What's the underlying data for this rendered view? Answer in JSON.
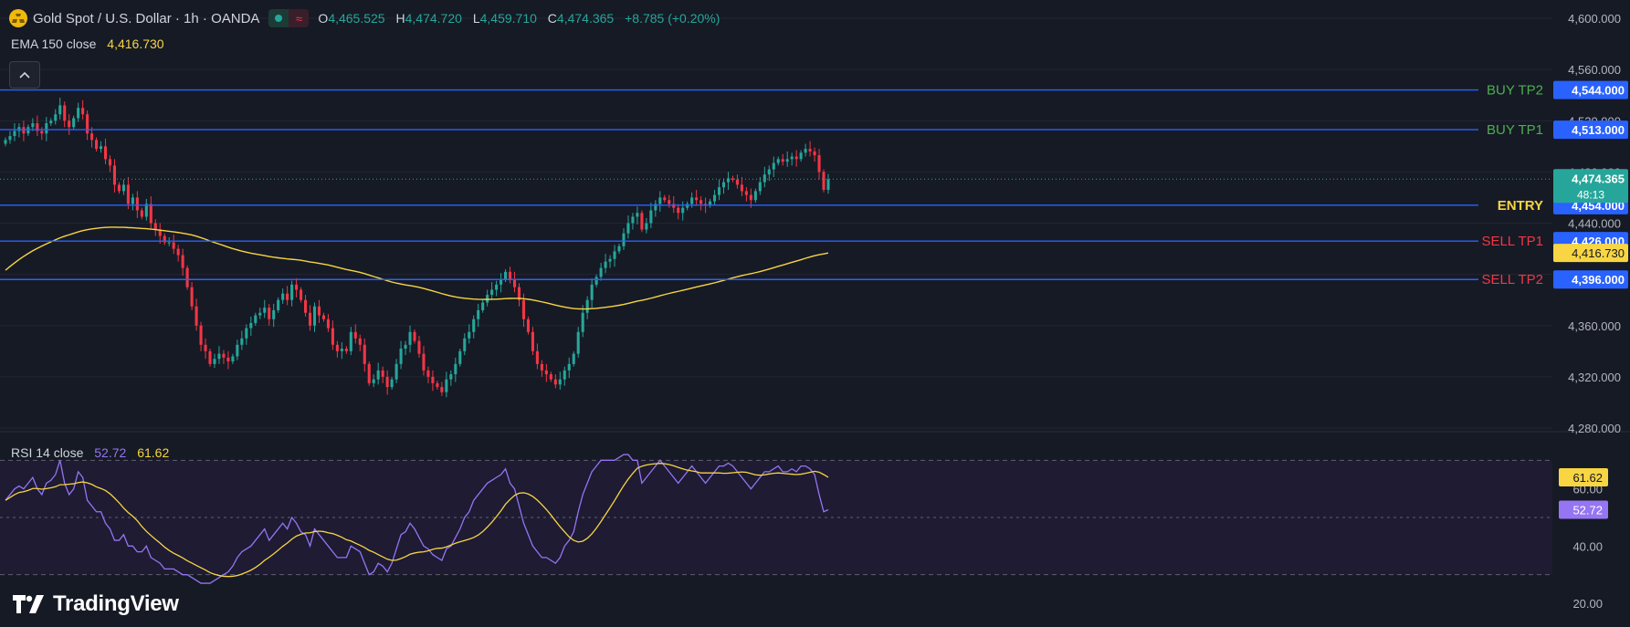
{
  "header": {
    "title": "Gold Spot / U.S. Dollar · 1h · OANDA",
    "ohlc": [
      {
        "key": "O",
        "value": "4,465.525"
      },
      {
        "key": "H",
        "value": "4,474.720"
      },
      {
        "key": "L",
        "value": "4,459.710"
      },
      {
        "key": "C",
        "value": "4,474.365"
      }
    ],
    "change": "+8.785 (+0.20%)"
  },
  "ema": {
    "label": "EMA 150 close",
    "value": "4,416.730"
  },
  "rsi": {
    "label": "RSI 14 close",
    "value": "52.72",
    "ma_value": "61.62"
  },
  "brand": {
    "name": "TradingView"
  },
  "colors": {
    "background": "#161a25",
    "up": "#26a69a",
    "down": "#f23645",
    "level_line": "#2962ff",
    "ema": "#f7d543",
    "rsi": "#9575f2",
    "rsi_ma": "#f7d543",
    "buy_label": "#4caf50",
    "sell_label": "#f23645",
    "entry_label": "#f7d543"
  },
  "chart_data": [
    {
      "type": "candlestick",
      "title": "Gold Spot / U.S. Dollar · 1h · OANDA",
      "ylim": [
        4280,
        4600
      ],
      "y_ticks": [
        "4,600.000",
        "4,560.000",
        "4,520.000",
        "4,480.000",
        "4,440.000",
        "4,400.000",
        "4,360.000",
        "4,320.000",
        "4,280.000"
      ],
      "grid": true,
      "levels": [
        {
          "label": "BUY TP2",
          "value": 4544,
          "price_label": "4,544.000",
          "color": "#4caf50"
        },
        {
          "label": "BUY TP1",
          "value": 4513,
          "price_label": "4,513.000",
          "color": "#4caf50"
        },
        {
          "label": "ENTRY",
          "value": 4454,
          "price_label": "4,454.000",
          "color": "#f7d543"
        },
        {
          "label": "SELL TP1",
          "value": 4426,
          "price_label": "4,426.000",
          "color": "#f23645"
        },
        {
          "label": "SELL TP2",
          "value": 4396,
          "price_label": "4,396.000",
          "color": "#f23645"
        }
      ],
      "last_price": {
        "value": 4474.365,
        "label": "4,474.365",
        "countdown": "48:13"
      },
      "ema_last": {
        "value": 4416.73,
        "label": "4,416.730"
      },
      "close": [
        4505,
        4508,
        4512,
        4515,
        4510,
        4515,
        4518,
        4512,
        4510,
        4518,
        4520,
        4525,
        4532,
        4520,
        4515,
        4522,
        4530,
        4525,
        4510,
        4505,
        4498,
        4500,
        4490,
        4485,
        4470,
        4465,
        4470,
        4455,
        4460,
        4450,
        4445,
        4455,
        4440,
        4435,
        4430,
        4425,
        4425,
        4420,
        4415,
        4405,
        4390,
        4375,
        4360,
        4345,
        4340,
        4330,
        4334,
        4338,
        4335,
        4332,
        4336,
        4345,
        4350,
        4358,
        4362,
        4368,
        4370,
        4374,
        4365,
        4372,
        4380,
        4385,
        4380,
        4392,
        4388,
        4380,
        4370,
        4360,
        4375,
        4368,
        4365,
        4358,
        4345,
        4340,
        4342,
        4340,
        4355,
        4350,
        4345,
        4330,
        4315,
        4318,
        4325,
        4320,
        4312,
        4318,
        4330,
        4342,
        4345,
        4355,
        4348,
        4338,
        4325,
        4320,
        4315,
        4312,
        4308,
        4318,
        4322,
        4330,
        4340,
        4350,
        4355,
        4365,
        4372,
        4378,
        4384,
        4388,
        4392,
        4396,
        4402,
        4396,
        4390,
        4380,
        4365,
        4355,
        4340,
        4330,
        4325,
        4322,
        4318,
        4314,
        4318,
        4325,
        4330,
        4338,
        4355,
        4370,
        4380,
        4392,
        4398,
        4405,
        4410,
        4412,
        4418,
        4422,
        4432,
        4440,
        4445,
        4448,
        4435,
        4440,
        4450,
        4455,
        4460,
        4458,
        4455,
        4452,
        4448,
        4452,
        4455,
        4460,
        4458,
        4455,
        4454,
        4457,
        4462,
        4468,
        4472,
        4475,
        4474,
        4470,
        4465,
        4462,
        4458,
        4465,
        4472,
        4478,
        4482,
        4487,
        4490,
        4488,
        4490,
        4492,
        4490,
        4495,
        4498,
        4496,
        4493,
        4480,
        4466,
        4474.365
      ],
      "ema_start": 4400
    },
    {
      "type": "line",
      "title": "RSI 14 close",
      "ylim": [
        20,
        80
      ],
      "y_ticks": [
        "60.00",
        "40.00",
        "20.00"
      ],
      "bands": [
        70,
        30
      ],
      "mid_line": 50,
      "series": [
        {
          "name": "RSI 14 close",
          "last_label": "52.72",
          "values": [
            56,
            58,
            60,
            61,
            60,
            62,
            64,
            60,
            58,
            62,
            63,
            65,
            70,
            62,
            58,
            60,
            66,
            64,
            56,
            54,
            52,
            52,
            48,
            46,
            42,
            42,
            44,
            40,
            40,
            38,
            38,
            40,
            36,
            35,
            34,
            32,
            32,
            32,
            31,
            30,
            30,
            29,
            28,
            27,
            27,
            27,
            28,
            29,
            30,
            31,
            33,
            36,
            38,
            39,
            40,
            42,
            44,
            46,
            42,
            44,
            46,
            48,
            46,
            50,
            48,
            45,
            44,
            40,
            46,
            44,
            42,
            40,
            38,
            36,
            36,
            36,
            40,
            39,
            38,
            34,
            30,
            31,
            34,
            33,
            31,
            34,
            39,
            44,
            45,
            48,
            46,
            43,
            40,
            39,
            37,
            36,
            35,
            39,
            40,
            43,
            46,
            50,
            52,
            56,
            58,
            60,
            62,
            63,
            64,
            65,
            67,
            62,
            60,
            54,
            48,
            44,
            40,
            38,
            36,
            36,
            35,
            34,
            36,
            40,
            42,
            45,
            52,
            58,
            62,
            66,
            68,
            70,
            70,
            70,
            70,
            71,
            72,
            72,
            70,
            70,
            62,
            64,
            66,
            68,
            70,
            68,
            66,
            64,
            62,
            64,
            66,
            68,
            66,
            64,
            62,
            64,
            66,
            68,
            68,
            69,
            68,
            66,
            64,
            62,
            60,
            62,
            64,
            66,
            66,
            67,
            68,
            66,
            66,
            67,
            66,
            68,
            68,
            67,
            65,
            58,
            52,
            52.72
          ]
        },
        {
          "name": "RSI MA",
          "last_label": "61.62",
          "values": []
        }
      ]
    }
  ]
}
